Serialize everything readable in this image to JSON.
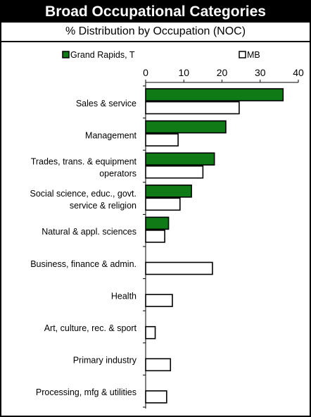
{
  "header": {
    "title": "Broad Occupational Categories",
    "subtitle": "% Distribution by Occupation (NOC)"
  },
  "colors": {
    "series_1": "#0f7a16",
    "series_2": "#ffffff",
    "border": "#000000"
  },
  "chart_data": {
    "type": "bar",
    "orientation": "horizontal",
    "title": "Broad Occupational Categories",
    "subtitle": "% Distribution by Occupation (NOC)",
    "xlabel": "",
    "ylabel": "",
    "xlim": [
      0,
      40
    ],
    "xticks": [
      "0",
      "10",
      "20",
      "30",
      "40"
    ],
    "grid": false,
    "legend": "top",
    "categories": [
      "Sales & service",
      "Management",
      "Trades, trans. & equipment operators",
      "Social science, educ., govt. service & religion",
      "Natural & appl. sciences",
      "Business, finance & admin.",
      "Health",
      "Art, culture, rec. & sport",
      "Primary industry",
      "Processing, mfg & utilities"
    ],
    "category_lines": [
      [
        "Sales & service"
      ],
      [
        "Management"
      ],
      [
        "Trades, trans. & equipment",
        "operators"
      ],
      [
        "Social science, educ., govt.",
        "service & religion"
      ],
      [
        "Natural & appl. sciences"
      ],
      [
        "Business, finance & admin."
      ],
      [
        "Health"
      ],
      [
        "Art, culture, rec. & sport"
      ],
      [
        "Primary industry"
      ],
      [
        "Processing, mfg & utilities"
      ]
    ],
    "series": [
      {
        "name": "Grand Rapids, T",
        "color": "#0f7a16",
        "values": [
          36,
          21,
          18,
          12,
          6,
          0,
          0,
          0,
          0,
          0
        ]
      },
      {
        "name": "MB",
        "color": "#ffffff",
        "values": [
          24.5,
          8.5,
          15,
          9,
          5,
          17.5,
          7,
          2.5,
          6.5,
          5.5
        ]
      }
    ]
  }
}
